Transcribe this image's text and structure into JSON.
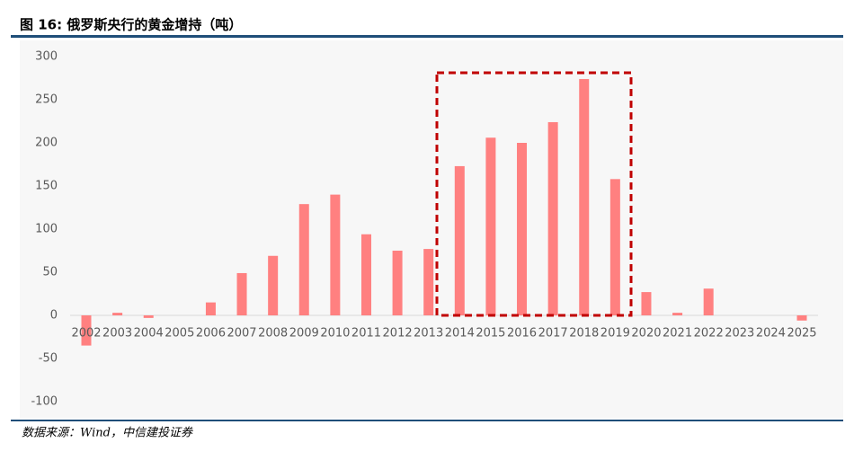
{
  "chart_data": {
    "type": "bar",
    "title": "图 16: 俄罗斯央行的黄金增持（吨）",
    "categories": [
      "2002",
      "2003",
      "2004",
      "2005",
      "2006",
      "2007",
      "2008",
      "2009",
      "2010",
      "2011",
      "2012",
      "2013",
      "2014",
      "2015",
      "2016",
      "2017",
      "2018",
      "2019",
      "2020",
      "2021",
      "2022",
      "2023",
      "2024",
      "2025"
    ],
    "values": [
      -35,
      3,
      -3,
      0,
      15,
      49,
      69,
      129,
      140,
      94,
      75,
      77,
      173,
      206,
      200,
      224,
      274,
      158,
      27,
      3,
      31,
      0,
      0,
      -6
    ],
    "color": "#ff8080",
    "ylim": [
      -100,
      300
    ],
    "yticks": [
      -100,
      -50,
      0,
      50,
      100,
      150,
      200,
      250,
      300
    ],
    "source": "数据来源：Wind，中信建投证券"
  }
}
